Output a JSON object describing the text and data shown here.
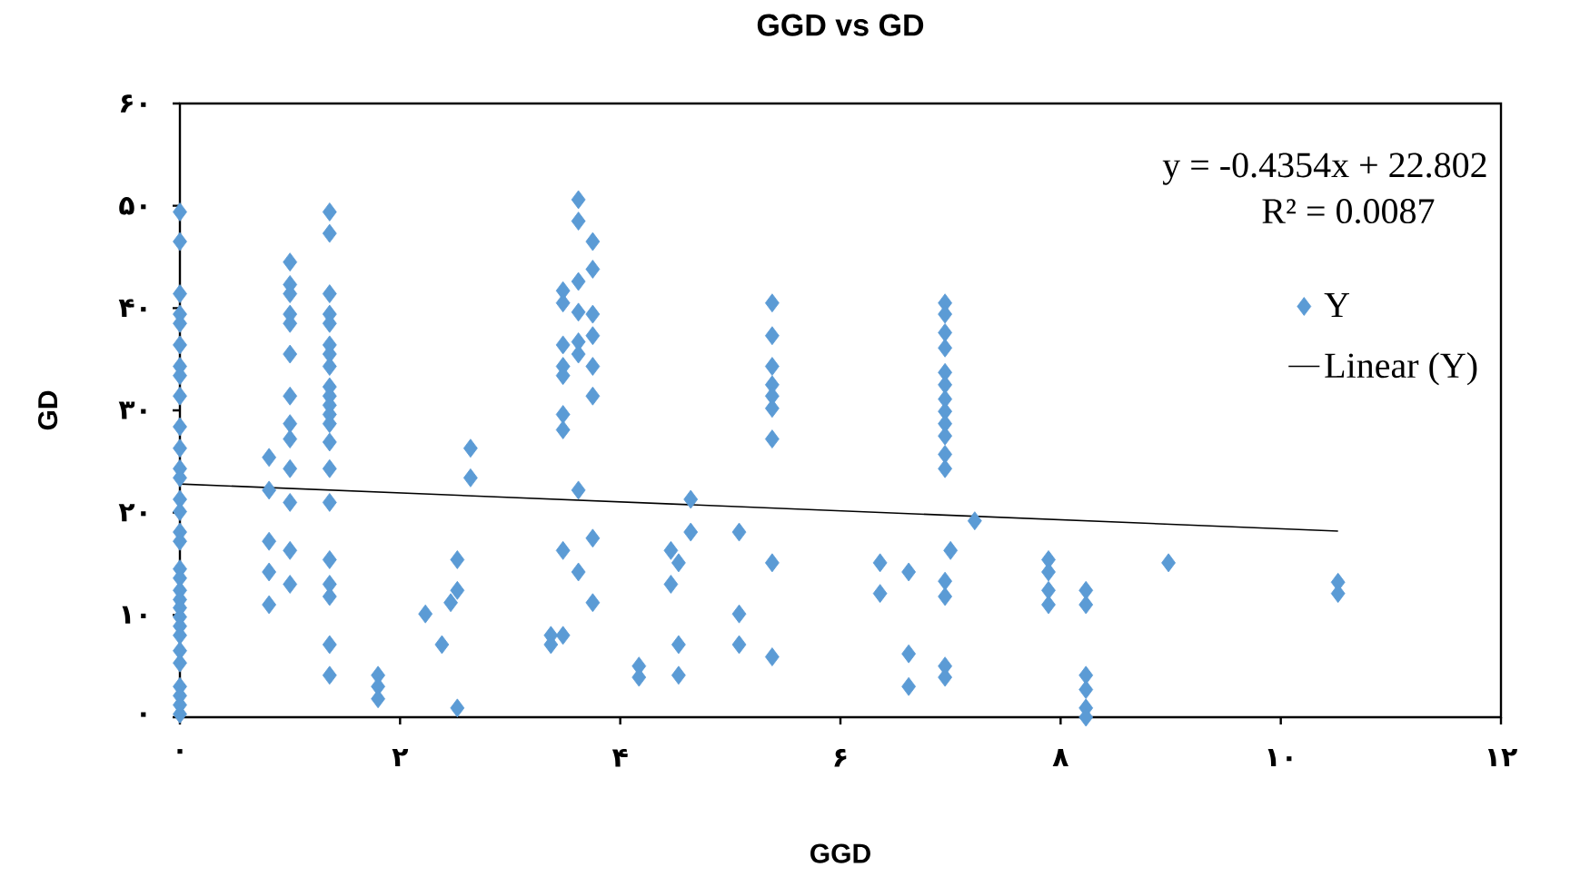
{
  "chart_data": {
    "type": "scatter",
    "title": "GGD vs GD",
    "xlabel": "GGD",
    "ylabel": "GD",
    "xlim": [
      0,
      12
    ],
    "xticks": [
      {
        "value": 0,
        "label": "۰"
      },
      {
        "value": 2,
        "label": "۲"
      },
      {
        "value": 4,
        "label": "۴"
      },
      {
        "value": 6,
        "label": "۶"
      },
      {
        "value": 8,
        "label": "۸"
      },
      {
        "value": 10,
        "label": "۱۰"
      },
      {
        "value": 12,
        "label": "۱۲"
      }
    ],
    "ylim": [
      0,
      60
    ],
    "yticks": [
      {
        "value": 0,
        "label": "۰"
      },
      {
        "value": 10,
        "label": "۱۰"
      },
      {
        "value": 20,
        "label": "۲۰"
      },
      {
        "value": 30,
        "label": "۳۰"
      },
      {
        "value": 40,
        "label": "۴۰"
      },
      {
        "value": 50,
        "label": "۵۰"
      },
      {
        "value": 60,
        "label": "۶۰"
      }
    ],
    "grid": false,
    "legend": "right",
    "annotations": [
      "y = -0.4354x + 22.802",
      "R² = 0.0087"
    ],
    "series": [
      {
        "name": "Y",
        "color": "#5b9bd5",
        "marker": "diamond",
        "x": [
          0,
          0,
          0,
          0,
          0,
          0,
          0,
          0,
          0,
          0,
          0,
          0,
          0,
          0,
          0,
          0,
          0,
          0,
          0,
          0,
          0,
          0,
          0,
          0,
          0,
          0,
          0,
          0,
          0,
          0,
          0,
          1.0,
          1.0,
          1.0,
          1.0,
          1.0,
          1.0,
          1.0,
          1.0,
          1.0,
          1.0,
          1.0,
          1.0,
          1.0,
          0.81,
          0.81,
          0.81,
          0.81,
          0.81,
          1.36,
          1.36,
          1.36,
          1.36,
          1.36,
          1.36,
          1.36,
          1.36,
          1.36,
          1.36,
          1.36,
          1.36,
          1.36,
          1.36,
          1.36,
          1.36,
          1.36,
          1.36,
          1.36,
          1.36,
          1.36,
          1.8,
          1.8,
          1.8,
          2.23,
          2.38,
          2.46,
          2.52,
          2.52,
          2.52,
          2.64,
          2.64,
          3.62,
          3.62,
          3.62,
          3.75,
          3.75,
          3.75,
          3.75,
          3.75,
          3.75,
          3.75,
          3.75,
          3.48,
          3.48,
          3.48,
          3.48,
          3.48,
          3.48,
          3.48,
          3.48,
          3.48,
          3.62,
          3.62,
          3.62,
          3.62,
          3.62,
          3.37,
          3.37,
          4.17,
          4.17,
          4.46,
          4.46,
          4.53,
          4.53,
          4.53,
          4.64,
          4.64,
          5.08,
          5.08,
          5.08,
          5.38,
          5.38,
          5.38,
          5.38,
          5.38,
          5.38,
          5.38,
          5.38,
          5.38,
          6.95,
          6.95,
          6.95,
          6.95,
          6.95,
          6.95,
          6.95,
          6.95,
          6.95,
          6.95,
          6.95,
          6.95,
          6.95,
          6.95,
          6.95,
          6.95,
          7.22,
          7.0,
          6.36,
          6.36,
          6.62,
          6.62,
          6.62,
          7.89,
          7.89,
          7.89,
          7.89,
          8.23,
          8.23,
          8.23,
          8.23,
          8.23,
          8.23,
          8.98,
          10.52,
          10.52
        ],
        "values": [
          49.4,
          46.5,
          41.4,
          39.4,
          38.5,
          36.4,
          34.3,
          33.4,
          31.4,
          28.4,
          26.3,
          24.3,
          23.4,
          21.3,
          20.1,
          18.1,
          17.2,
          14.5,
          13.6,
          12.4,
          11.5,
          10.7,
          9.8,
          8.9,
          8.0,
          6.5,
          5.3,
          3.0,
          2.1,
          1.2,
          0.3,
          44.5,
          42.3,
          41.4,
          39.4,
          38.5,
          35.5,
          31.4,
          28.7,
          27.2,
          24.3,
          21.0,
          16.3,
          13.0,
          25.4,
          22.2,
          17.2,
          14.2,
          11.0,
          49.4,
          47.3,
          41.4,
          39.4,
          38.5,
          36.4,
          35.5,
          34.3,
          32.3,
          31.4,
          30.5,
          29.6,
          28.7,
          26.9,
          24.3,
          21.0,
          15.4,
          13.0,
          11.8,
          7.1,
          4.1,
          4.1,
          3.0,
          1.8,
          10.1,
          7.1,
          11.2,
          15.4,
          12.4,
          0.9,
          26.3,
          23.4,
          50.6,
          48.5,
          22.2,
          46.5,
          43.8,
          39.4,
          37.3,
          34.3,
          31.4,
          17.5,
          11.2,
          41.7,
          40.5,
          36.4,
          34.3,
          33.4,
          29.6,
          28.1,
          16.3,
          8.0,
          42.6,
          39.6,
          36.7,
          35.5,
          14.2,
          8.0,
          7.1,
          5.0,
          3.9,
          16.3,
          13.0,
          15.1,
          7.1,
          4.1,
          21.3,
          18.1,
          18.1,
          10.1,
          7.1,
          40.5,
          37.3,
          34.3,
          32.5,
          31.4,
          30.2,
          27.2,
          15.1,
          5.9,
          40.5,
          39.4,
          37.6,
          36.1,
          33.7,
          32.5,
          31.1,
          29.9,
          28.7,
          27.5,
          25.7,
          24.3,
          13.3,
          11.8,
          5.0,
          3.9,
          19.2,
          16.3,
          15.1,
          12.1,
          14.2,
          6.2,
          3.0,
          15.4,
          14.2,
          12.4,
          11.0,
          12.4,
          11.0,
          4.1,
          2.7,
          0.9,
          0,
          15.1,
          13.2,
          12.1
        ]
      },
      {
        "name": "Linear (Y)",
        "type": "line",
        "color": "#000000",
        "marker": "none",
        "x": [
          0,
          10.52
        ],
        "values": [
          22.8,
          18.2
        ]
      }
    ]
  }
}
